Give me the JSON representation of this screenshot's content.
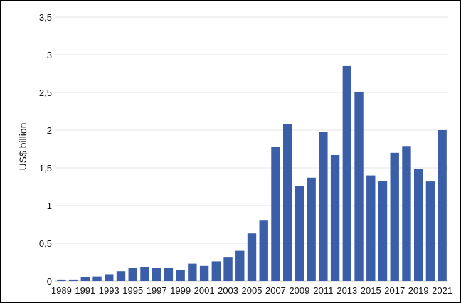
{
  "chart_data": {
    "type": "bar",
    "title": "",
    "xlabel": "",
    "ylabel": "US$ billion",
    "ylim": [
      0,
      3.5
    ],
    "yticks": [
      "0",
      "0,5",
      "1",
      "1,5",
      "2",
      "2,5",
      "3",
      "3,5"
    ],
    "ytick_values": [
      0,
      0.5,
      1,
      1.5,
      2,
      2.5,
      3,
      3.5
    ],
    "grid": true,
    "legend": "none",
    "bar_color": "#3b5ea8",
    "categories": [
      "1989",
      "1990",
      "1991",
      "1992",
      "1993",
      "1994",
      "1995",
      "1996",
      "1997",
      "1998",
      "1999",
      "2000",
      "2001",
      "2002",
      "2003",
      "2004",
      "2005",
      "2006",
      "2007",
      "2008",
      "2009",
      "2010",
      "2011",
      "2012",
      "2013",
      "2014",
      "2015",
      "2016",
      "2017",
      "2018",
      "2019",
      "2020",
      "2021"
    ],
    "xtick_labels": [
      "1989",
      "1991",
      "1993",
      "1995",
      "1997",
      "1999",
      "2001",
      "2003",
      "2005",
      "2007",
      "2009",
      "2011",
      "2013",
      "2015",
      "2017",
      "2019",
      "2021"
    ],
    "values": [
      0.02,
      0.02,
      0.05,
      0.06,
      0.09,
      0.13,
      0.17,
      0.18,
      0.17,
      0.17,
      0.15,
      0.23,
      0.2,
      0.26,
      0.31,
      0.4,
      0.63,
      0.8,
      1.78,
      2.08,
      1.26,
      1.37,
      1.98,
      1.67,
      2.85,
      2.51,
      1.4,
      1.33,
      1.7,
      1.79,
      1.49,
      1.32,
      2.0
    ]
  }
}
